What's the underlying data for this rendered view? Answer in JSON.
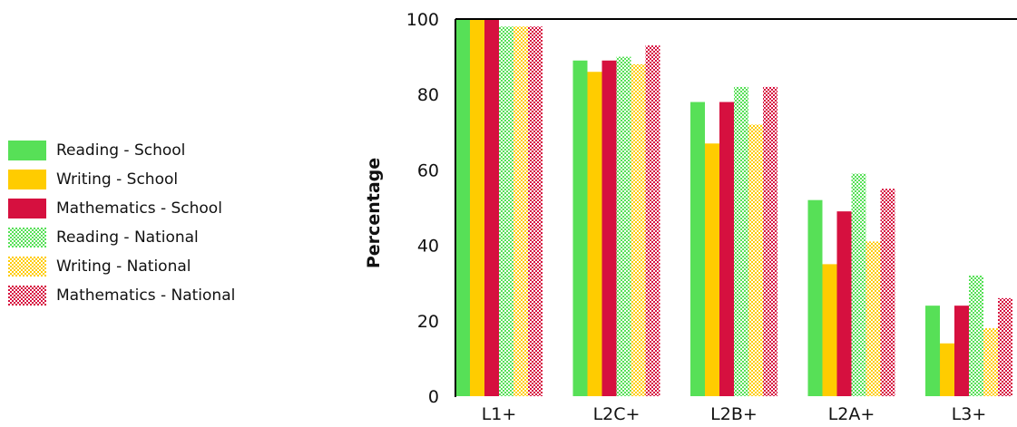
{
  "chart_data": {
    "type": "bar",
    "ylabel": "Percentage",
    "xlabel": "",
    "ylim": [
      0,
      100
    ],
    "yticks": [
      0,
      20,
      40,
      60,
      80,
      100
    ],
    "grid": false,
    "legend_position": "left",
    "categories": [
      "L1+",
      "L2C+",
      "L2B+",
      "L2A+",
      "L3+"
    ],
    "series": [
      {
        "name": "Reading - School",
        "color": "#57e057",
        "pattern": "solid",
        "values": [
          100,
          89,
          78,
          52,
          24
        ]
      },
      {
        "name": "Writing - School",
        "color": "#ffcc00",
        "pattern": "solid",
        "values": [
          100,
          86,
          67,
          35,
          14
        ]
      },
      {
        "name": "Mathematics - School",
        "color": "#d6103f",
        "pattern": "solid",
        "values": [
          100,
          89,
          78,
          49,
          24
        ]
      },
      {
        "name": "Reading - National",
        "color": "#57e057",
        "pattern": "checker",
        "values": [
          98,
          90,
          82,
          59,
          32
        ]
      },
      {
        "name": "Writing - National",
        "color": "#ffcc00",
        "pattern": "checker",
        "values": [
          98,
          88,
          72,
          41,
          18
        ]
      },
      {
        "name": "Mathematics - National",
        "color": "#d6103f",
        "pattern": "checker",
        "values": [
          98,
          93,
          82,
          55,
          26
        ]
      }
    ]
  }
}
